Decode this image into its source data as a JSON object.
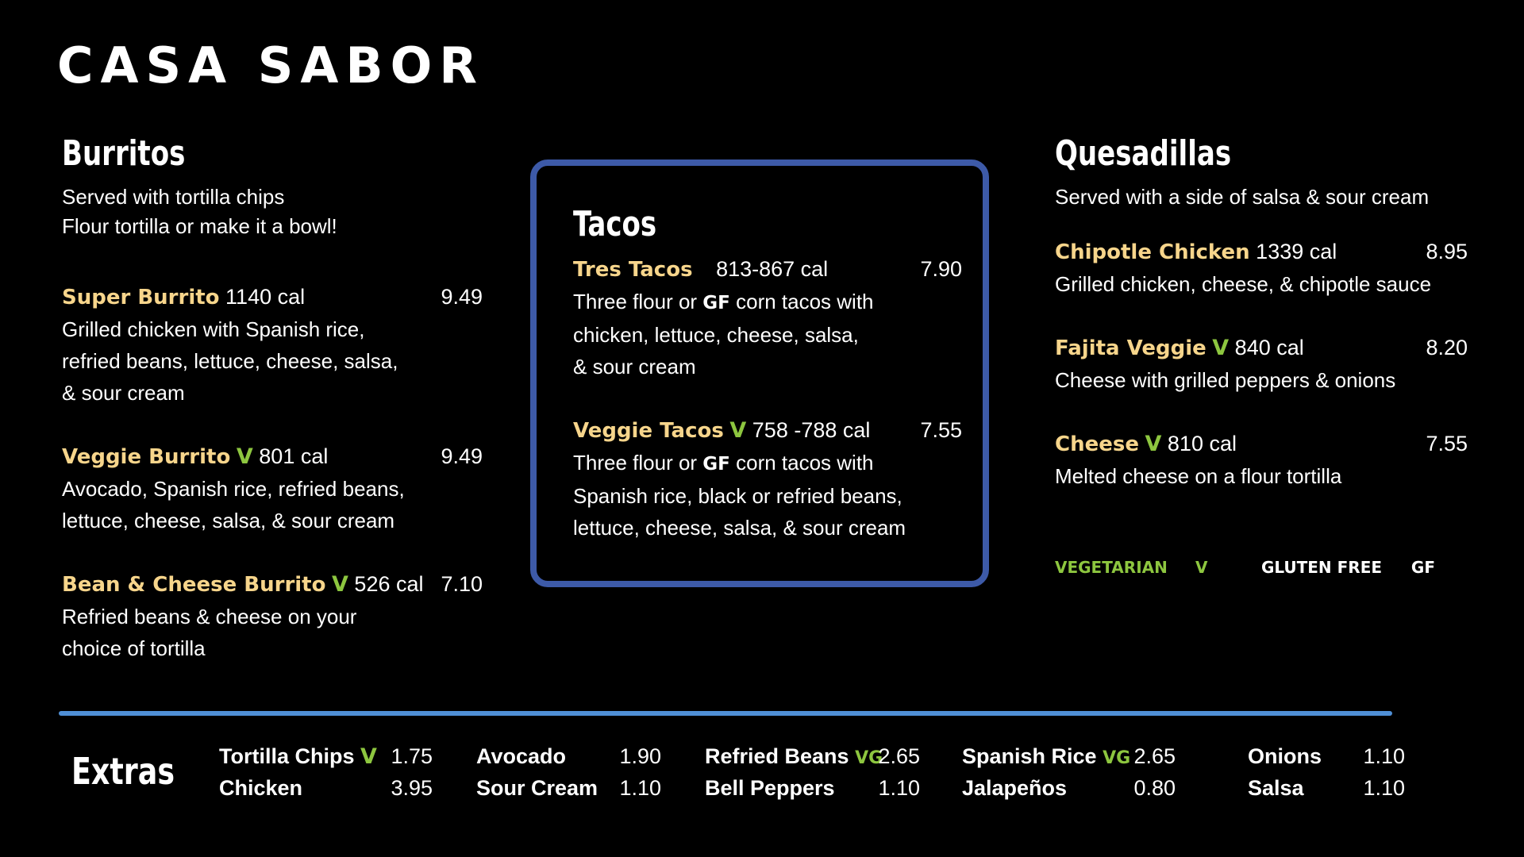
{
  "brand": "CASA SABOR",
  "colors": {
    "background": "#000000",
    "item_name": "#f7d58b",
    "veg": "#8dc63f",
    "box_border": "#3d5aa8",
    "divider": "#4f8fd6"
  },
  "burritos": {
    "title": "Burritos",
    "sub1": "Served with tortilla chips",
    "sub2": "Flour tortilla or make it a bowl!",
    "items": [
      {
        "name": "Super Burrito",
        "veg": "",
        "cal": "1140 cal",
        "price": "9.49",
        "desc": [
          "Grilled chicken with Spanish rice,",
          "refried beans, lettuce, cheese, salsa,",
          "& sour cream"
        ]
      },
      {
        "name": "Veggie Burrito",
        "veg": "V",
        "cal": "801 cal",
        "price": "9.49",
        "desc": [
          "Avocado, Spanish rice, refried beans,",
          "lettuce, cheese, salsa, & sour cream"
        ]
      },
      {
        "name": "Bean & Cheese Burrito",
        "veg": "V",
        "cal": "526 cal",
        "price": "7.10",
        "desc": [
          "Refried beans & cheese on your",
          "choice of tortilla"
        ]
      }
    ]
  },
  "tacos": {
    "title": "Tacos",
    "items": [
      {
        "name": "Tres Tacos",
        "veg": "",
        "cal": "813-867 cal",
        "price": "7.90",
        "desc1_pre": "Three flour or ",
        "gf": "GF",
        "desc1_post": " corn tacos with",
        "desc": [
          "chicken, lettuce, cheese, salsa,",
          "& sour cream"
        ]
      },
      {
        "name": "Veggie Tacos",
        "veg": "V",
        "cal": "758 -788 cal",
        "price": "7.55",
        "desc1_pre": "Three flour or ",
        "gf": "GF",
        "desc1_post": " corn tacos with",
        "desc": [
          "Spanish rice, black or refried beans,",
          "lettuce, cheese, salsa, & sour cream"
        ]
      }
    ]
  },
  "quesadillas": {
    "title": "Quesadillas",
    "sub1": "Served with a side of salsa & sour cream",
    "items": [
      {
        "name": "Chipotle Chicken",
        "veg": "",
        "cal": "1339 cal",
        "price": "8.95",
        "desc": [
          "Grilled chicken, cheese, & chipotle sauce"
        ]
      },
      {
        "name": "Fajita Veggie",
        "veg": "V",
        "cal": "840 cal",
        "price": "8.20",
        "desc": [
          "Cheese with grilled peppers & onions"
        ]
      },
      {
        "name": "Cheese",
        "veg": "V",
        "cal": "810 cal",
        "price": "7.55",
        "desc": [
          "Melted cheese on a flour tortilla"
        ]
      }
    ]
  },
  "legend": {
    "veg_label": "VEGETARIAN",
    "veg_symbol": "V",
    "gf_label": "GLUTEN FREE",
    "gf_symbol": "GF"
  },
  "extras": {
    "title": "Extras",
    "items": [
      {
        "name": "Tortilla Chips",
        "tag": "V",
        "price": "1.75"
      },
      {
        "name": "Chicken",
        "tag": "",
        "price": "3.95"
      },
      {
        "name": "Avocado",
        "tag": "",
        "price": "1.90"
      },
      {
        "name": "Sour Cream",
        "tag": "",
        "price": "1.10"
      },
      {
        "name": "Refried Beans",
        "tag": "VG",
        "price": "2.65"
      },
      {
        "name": "Bell Peppers",
        "tag": "",
        "price": "1.10"
      },
      {
        "name": "Spanish Rice",
        "tag": "VG",
        "price": "2.65"
      },
      {
        "name": "Jalapeños",
        "tag": "",
        "price": "0.80"
      },
      {
        "name": "Onions",
        "tag": "",
        "price": "1.10"
      },
      {
        "name": "Salsa",
        "tag": "",
        "price": "1.10"
      }
    ]
  }
}
